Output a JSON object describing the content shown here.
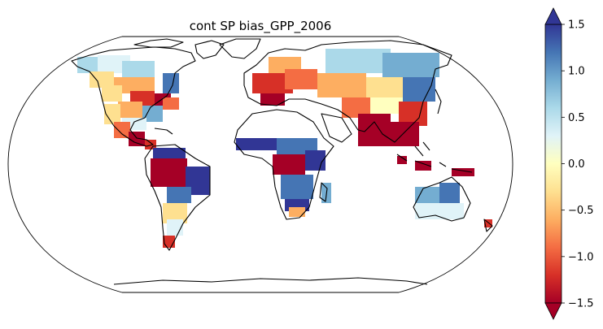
{
  "title": "cont SP bias_GPP_2006",
  "colorbar": {
    "cmap": "RdYlBu",
    "min": -1.5,
    "max": 1.5,
    "extend": "both",
    "ticks": [
      1.5,
      1.0,
      0.5,
      0.0,
      -0.5,
      -1.0,
      -1.5
    ],
    "tick_labels": [
      "1.5",
      "1.0",
      "0.5",
      "0.0",
      "−0.5",
      "−1.0",
      "−1.5"
    ],
    "stops": [
      "#a50026",
      "#d73027",
      "#f46d43",
      "#fdae61",
      "#fee090",
      "#ffffbf",
      "#e0f3f8",
      "#abd9e9",
      "#74add1",
      "#4575b4",
      "#313695"
    ]
  },
  "map": {
    "projection": "Robinson",
    "coastline_color": "#000000",
    "background": "#ffffff"
  }
}
